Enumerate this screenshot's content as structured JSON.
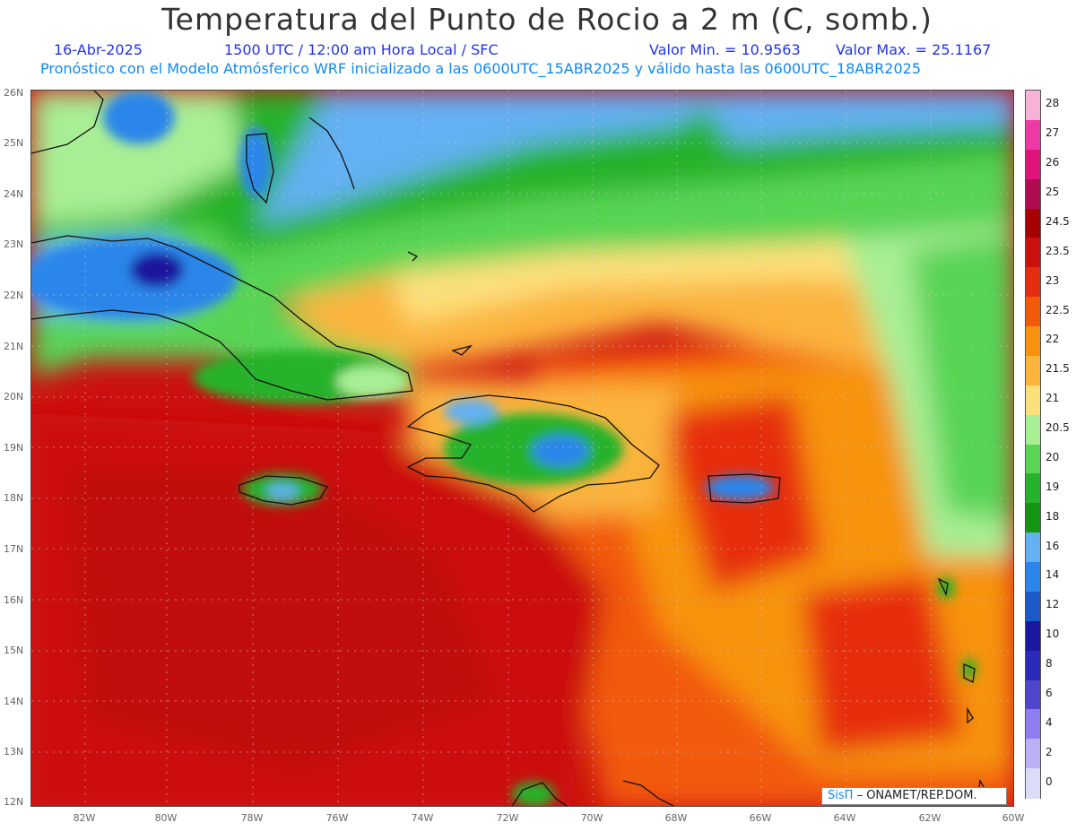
{
  "title": "Temperatura del Punto de Rocio a 2 m (C, somb.)",
  "date": "16-Abr-2025",
  "time": "1500 UTC / 12:00 am Hora Local / SFC",
  "min_label": "Valor Min. = 10.9563",
  "max_label": "Valor Max. = 25.1167",
  "forecast_note": "Pronóstico con el Modelo Atmósferico WRF inicializado a las 0600UTC_15ABR2025 y válido hasta las  0600UTC_18ABR2025",
  "lat_labels": [
    "26N",
    "25N",
    "24N",
    "23N",
    "22N",
    "21N",
    "20N",
    "19N",
    "18N",
    "17N",
    "16N",
    "15N",
    "14N",
    "13N",
    "12N"
  ],
  "lon_labels": [
    "82W",
    "80W",
    "78W",
    "76W",
    "74W",
    "72W",
    "70W",
    "68W",
    "66W",
    "64W",
    "62W",
    "60W"
  ],
  "colorbar": {
    "labels": [
      "28",
      "27",
      "26",
      "25",
      "24.5",
      "23.5",
      "23",
      "22.5",
      "22",
      "21.5",
      "21",
      "20.5",
      "20",
      "19",
      "18",
      "16",
      "14",
      "12",
      "10",
      "8",
      "6",
      "4",
      "2",
      "0"
    ],
    "colors": [
      "#f7b2d6",
      "#ee3aa6",
      "#e0137b",
      "#b10c52",
      "#a80000",
      "#cc1010",
      "#e62d10",
      "#f25a0a",
      "#f7930e",
      "#fbb43c",
      "#fde07a",
      "#a8ee94",
      "#59d455",
      "#27b22b",
      "#169515",
      "#63b0f2",
      "#2c86ea",
      "#1c5ac8",
      "#1a189e",
      "#2b2ab8",
      "#4f46cc",
      "#8e7ef0",
      "#b9b0f6",
      "#dcdcf8"
    ]
  },
  "credit": {
    "brand": "SisΠ",
    "org": "– ONAMET/REP.DOM."
  }
}
